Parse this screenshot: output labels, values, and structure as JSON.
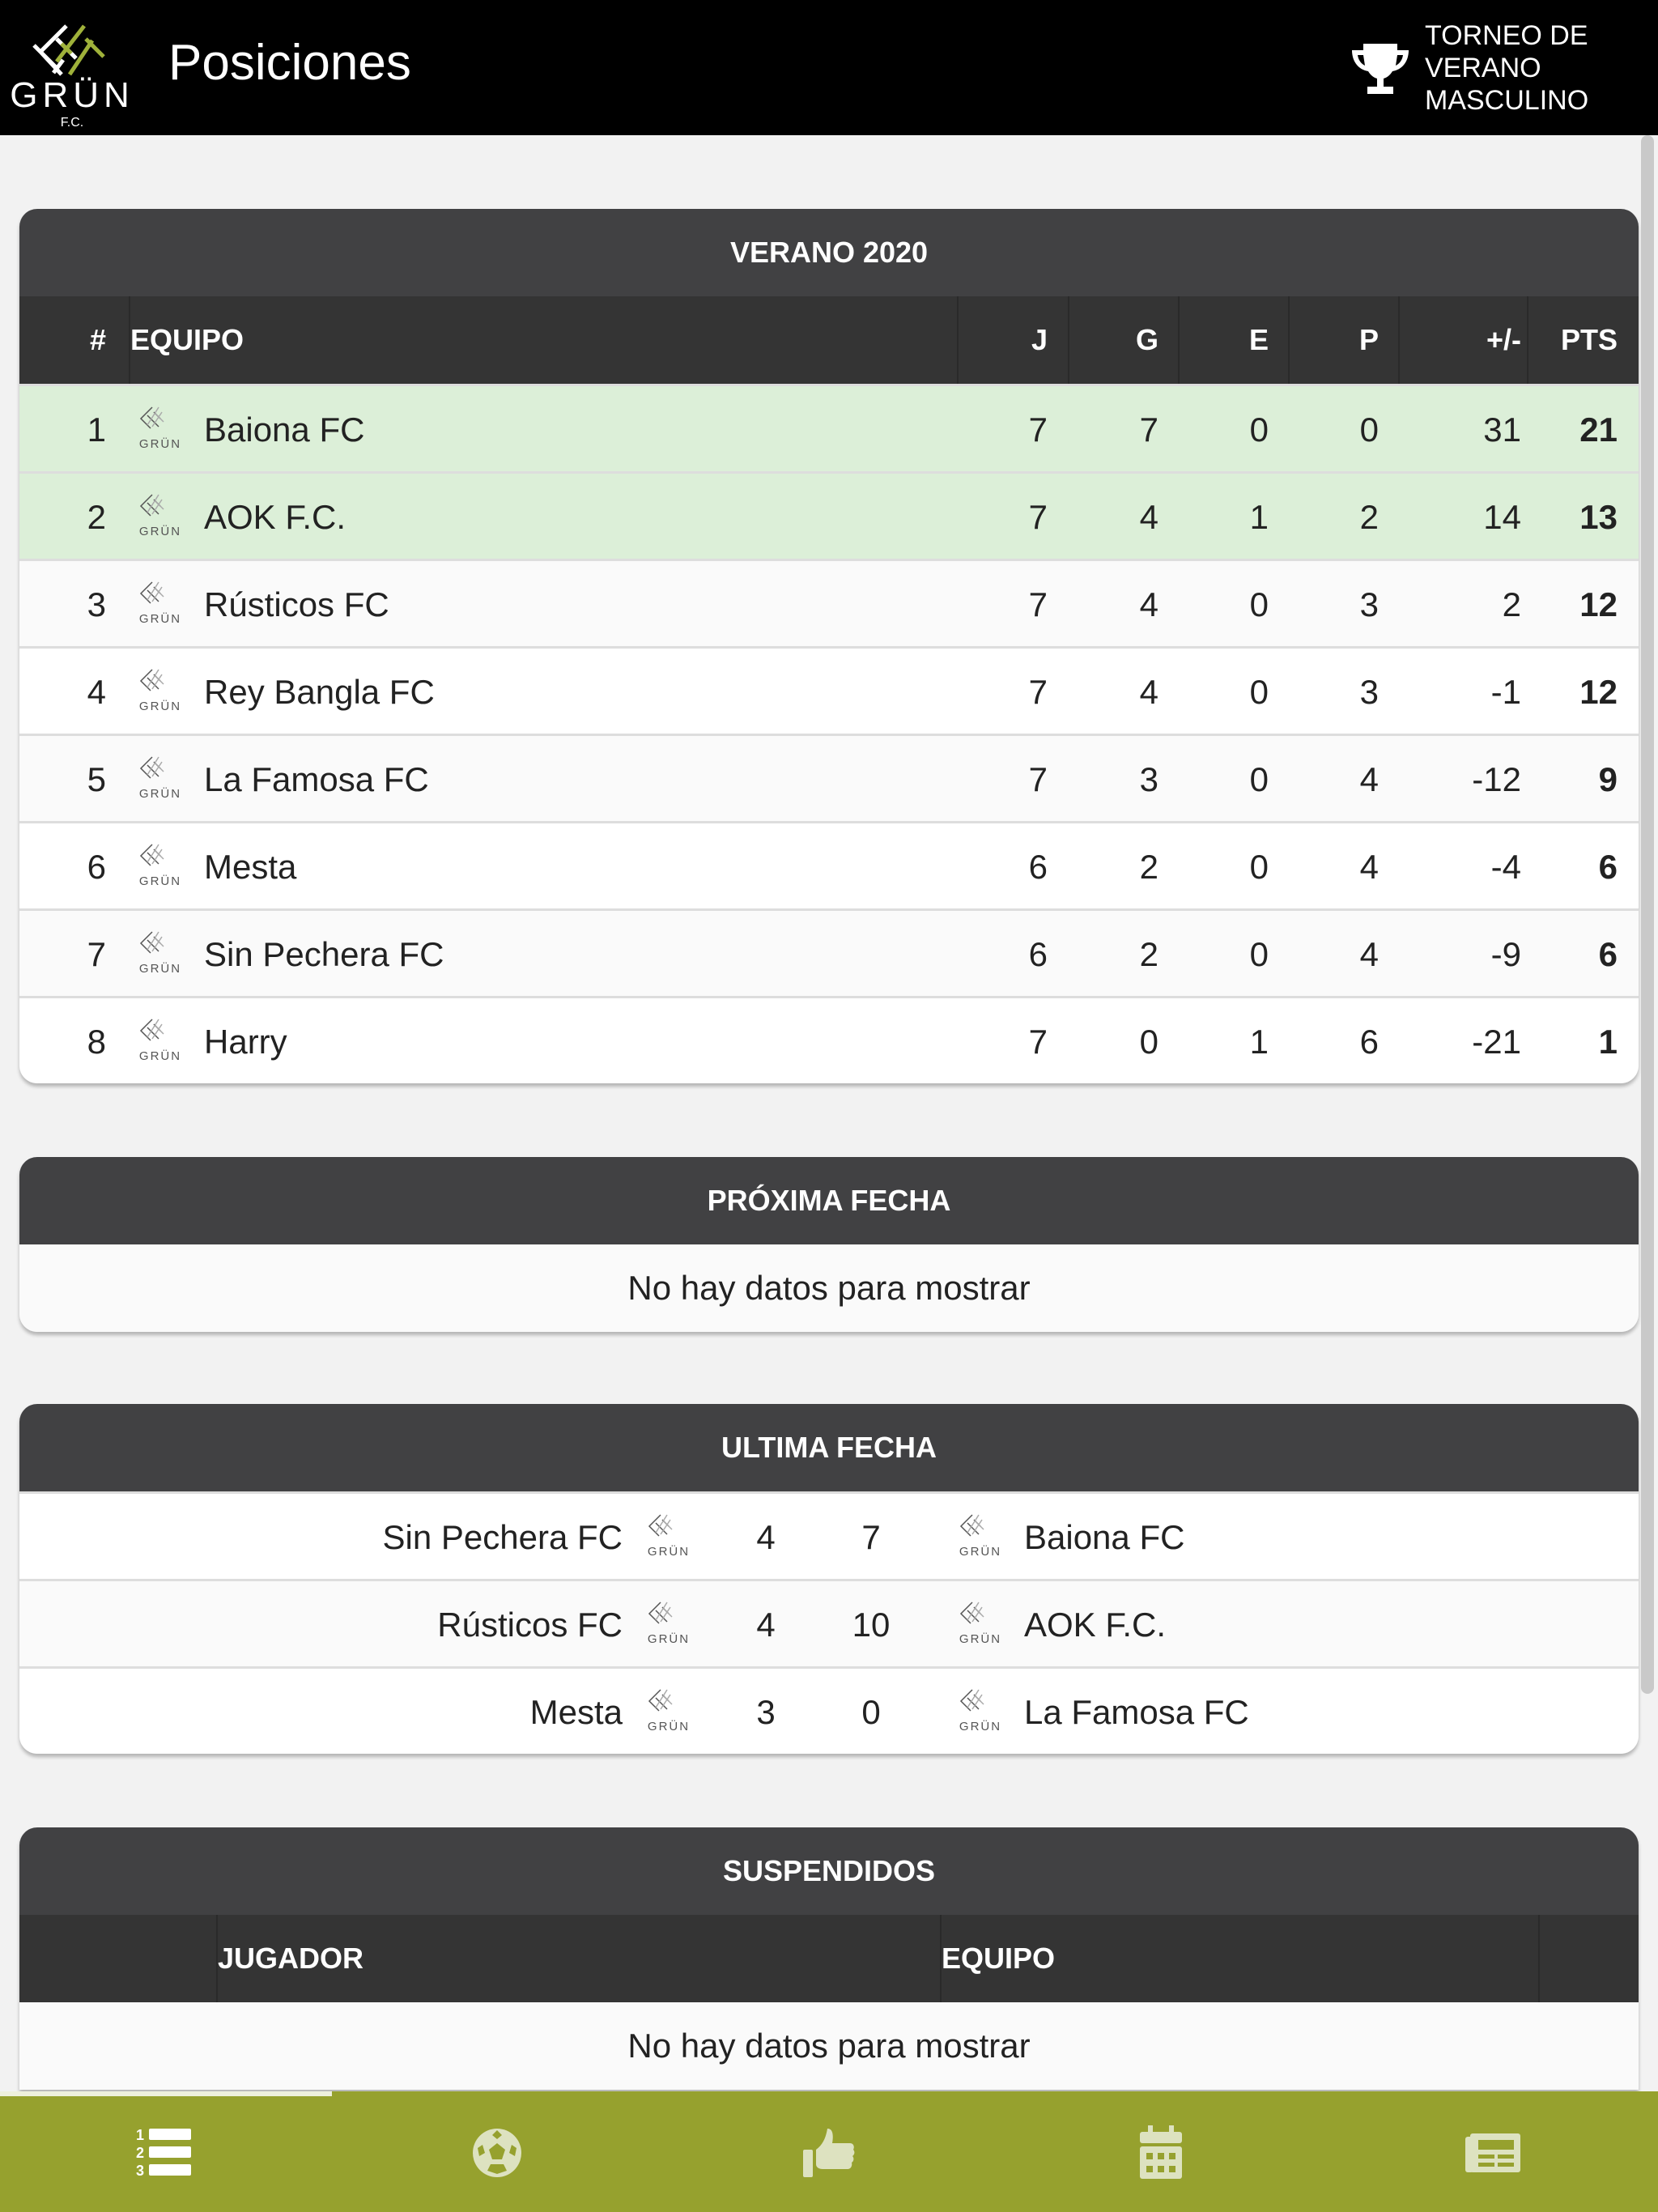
{
  "header": {
    "title": "Posiciones",
    "logo_text": "GRÜN F.C.",
    "tournament_lines": [
      "TORNEO DE",
      "VERANO",
      "MASCULINO"
    ]
  },
  "standings": {
    "title": "VERANO 2020",
    "columns": [
      "#",
      "EQUIPO",
      "J",
      "G",
      "E",
      "P",
      "+/-",
      "PTS"
    ],
    "rows": [
      {
        "pos": "1",
        "team": "Baiona FC",
        "j": "7",
        "g": "7",
        "e": "0",
        "p": "0",
        "diff": "31",
        "pts": "21",
        "qualified": true
      },
      {
        "pos": "2",
        "team": "AOK F.C.",
        "j": "7",
        "g": "4",
        "e": "1",
        "p": "2",
        "diff": "14",
        "pts": "13",
        "qualified": true
      },
      {
        "pos": "3",
        "team": "Rústicos FC",
        "j": "7",
        "g": "4",
        "e": "0",
        "p": "3",
        "diff": "2",
        "pts": "12"
      },
      {
        "pos": "4",
        "team": "Rey Bangla FC",
        "j": "7",
        "g": "4",
        "e": "0",
        "p": "3",
        "diff": "-1",
        "pts": "12"
      },
      {
        "pos": "5",
        "team": "La Famosa FC",
        "j": "7",
        "g": "3",
        "e": "0",
        "p": "4",
        "diff": "-12",
        "pts": "9"
      },
      {
        "pos": "6",
        "team": "Mesta",
        "j": "6",
        "g": "2",
        "e": "0",
        "p": "4",
        "diff": "-4",
        "pts": "6"
      },
      {
        "pos": "7",
        "team": "Sin Pechera FC",
        "j": "6",
        "g": "2",
        "e": "0",
        "p": "4",
        "diff": "-9",
        "pts": "6"
      },
      {
        "pos": "8",
        "team": "Harry",
        "j": "7",
        "g": "0",
        "e": "1",
        "p": "6",
        "diff": "-21",
        "pts": "1"
      }
    ]
  },
  "next": {
    "title": "PRÓXIMA FECHA",
    "empty": "No hay datos para mostrar"
  },
  "last": {
    "title": "ULTIMA FECHA",
    "matches": [
      {
        "home": "Sin Pechera FC",
        "hs": "4",
        "as": "7",
        "away": "Baiona FC"
      },
      {
        "home": "Rústicos FC",
        "hs": "4",
        "as": "10",
        "away": "AOK F.C."
      },
      {
        "home": "Mesta",
        "hs": "3",
        "as": "0",
        "away": "La Famosa FC"
      }
    ]
  },
  "suspended": {
    "title": "SUSPENDIDOS",
    "columns": [
      "JUGADOR",
      "EQUIPO"
    ],
    "empty": "No hay datos para mostrar"
  },
  "nav": {
    "items": [
      "standings-icon",
      "soccer-ball-icon",
      "thumbs-up-icon",
      "calendar-icon",
      "news-icon"
    ],
    "active": 0
  },
  "colors": {
    "nav": "#96a12e",
    "qualified": "#dcefd8",
    "header": "#000000"
  }
}
